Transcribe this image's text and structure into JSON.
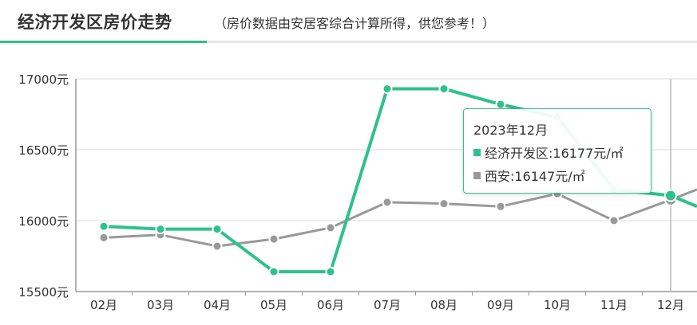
{
  "header": {
    "title": "经济开发区房价走势",
    "subtitle": "（房价数据由安居客综合计算所得，供您参考！）"
  },
  "colors": {
    "accent": "#2ec18b",
    "secondary": "#999999"
  },
  "chart_data": {
    "type": "line",
    "categories": [
      "02月",
      "03月",
      "04月",
      "05月",
      "06月",
      "07月",
      "08月",
      "09月",
      "10月",
      "11月",
      "12月"
    ],
    "y_ticks": [
      "15500元",
      "16000元",
      "16500元",
      "17000元"
    ],
    "ylim": [
      15500,
      17000
    ],
    "grid": true,
    "series": [
      {
        "name": "经济开发区",
        "color": "#2ec18b",
        "values": [
          15960,
          15940,
          15940,
          15640,
          15640,
          16930,
          16930,
          16820,
          16730,
          16220,
          16177
        ]
      },
      {
        "name": "西安",
        "color": "#999999",
        "values": [
          15880,
          15900,
          15820,
          15870,
          15950,
          16130,
          16120,
          16100,
          16190,
          16000,
          16147
        ]
      }
    ],
    "tooltip": {
      "title": "2023年12月",
      "rows": [
        {
          "label": "经济开发区:16177元/㎡",
          "color": "#2ec18b"
        },
        {
          "label": "西安:16147元/㎡",
          "color": "#999999"
        }
      ]
    }
  }
}
